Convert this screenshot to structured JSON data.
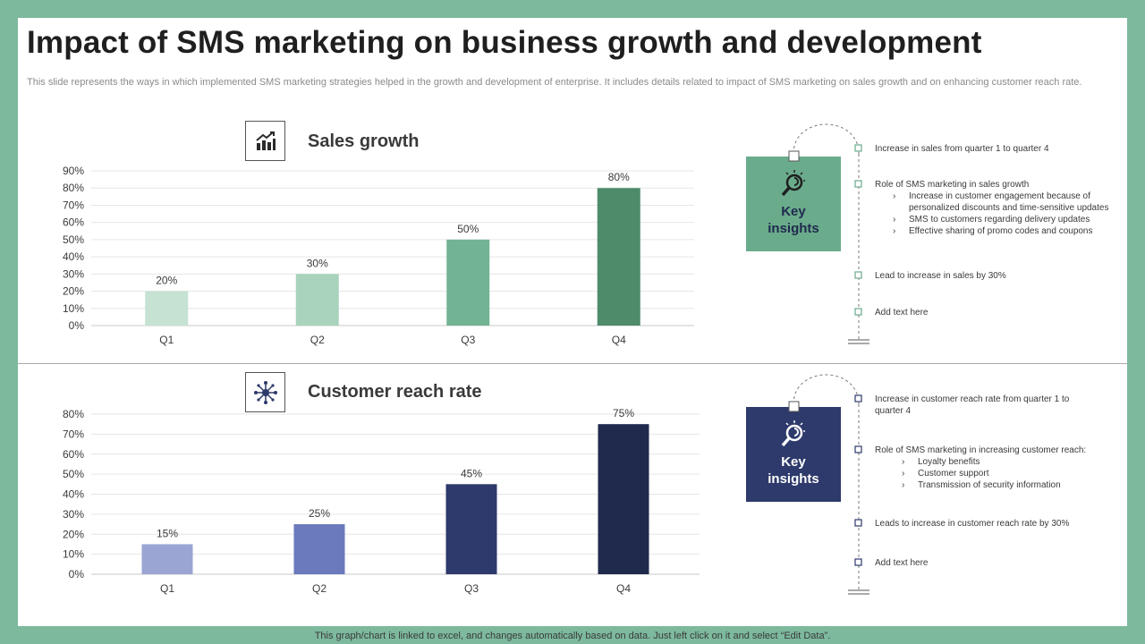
{
  "title": "Impact of SMS marketing on business growth and development",
  "subtitle": "This slide represents the ways in which implemented SMS marketing strategies helped in the growth and development of enterprise. It includes details related to impact of SMS  marketing on sales growth and on enhancing customer reach rate.",
  "footer": "This graph/chart is linked to excel,  and changes automatically based on data. Just left click on it and select “Edit Data”.",
  "charts": [
    {
      "heading": "Sales growth",
      "icon": "growth-chart-icon",
      "colors": [
        "#c5e2d3",
        "#a9d3bc",
        "#72b394",
        "#4d8b6b"
      ]
    },
    {
      "heading": "Customer  reach rate",
      "icon": "network-icon",
      "colors": [
        "#9aa5d4",
        "#6b79bd",
        "#2d3a6b",
        "#1f2a4d"
      ]
    }
  ],
  "chart_data": [
    {
      "type": "bar",
      "title": "Sales growth",
      "categories": [
        "Q1",
        "Q2",
        "Q3",
        "Q4"
      ],
      "values": [
        20,
        30,
        50,
        80
      ],
      "value_labels": [
        "20%",
        "30%",
        "50%",
        "80%"
      ],
      "ylim": [
        0,
        90
      ],
      "yticks": [
        "0%",
        "10%",
        "20%",
        "30%",
        "40%",
        "50%",
        "60%",
        "70%",
        "80%",
        "90%"
      ],
      "grid": true
    },
    {
      "type": "bar",
      "title": "Customer  reach rate",
      "categories": [
        "Q1",
        "Q2",
        "Q3",
        "Q4"
      ],
      "values": [
        15,
        25,
        45,
        75
      ],
      "value_labels": [
        "15%",
        "25%",
        "45%",
        "75%"
      ],
      "ylim": [
        0,
        80
      ],
      "yticks": [
        "0%",
        "10%",
        "20%",
        "30%",
        "40%",
        "50%",
        "60%",
        "70%",
        "80%"
      ],
      "grid": true
    }
  ],
  "insights": [
    {
      "label_line1": "Key",
      "label_line2": "insights",
      "color": "#6aab8b",
      "marker_color": "#6aab8b",
      "points": [
        {
          "text": "Increase in sales from quarter 1 to quarter 4",
          "subs": []
        },
        {
          "text": "Role of SMS marketing in sales growth",
          "subs": [
            "Increase in customer engagement because of personalized discounts and time-sensitive updates",
            "SMS to customers regarding delivery updates",
            "Effective sharing of promo codes and coupons"
          ]
        },
        {
          "text": "Lead to increase in sales by 30%",
          "subs": []
        },
        {
          "text": "Add text here",
          "subs": []
        }
      ]
    },
    {
      "label_line1": "Key",
      "label_line2": "insights",
      "color": "#2d3a6b",
      "marker_color": "#2d3a6b",
      "points": [
        {
          "text": "Increase in customer reach rate from quarter 1 to quarter 4",
          "subs": []
        },
        {
          "text": "Role of SMS marketing in increasing customer reach:",
          "subs": [
            "Loyalty benefits",
            "Customer support",
            "Transmission of security information"
          ]
        },
        {
          "text": "Leads to increase in customer reach rate by 30%",
          "subs": []
        },
        {
          "text": "Add text here",
          "subs": []
        }
      ]
    }
  ]
}
